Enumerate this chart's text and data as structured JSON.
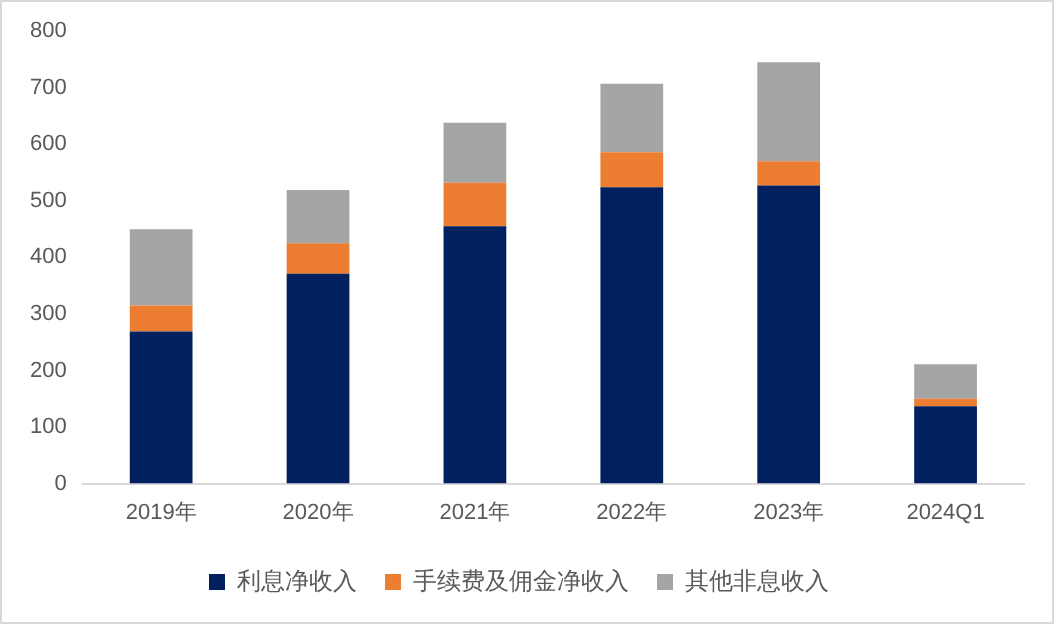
{
  "chart_data": {
    "type": "bar",
    "stacked": true,
    "categories": [
      "2019年",
      "2020年",
      "2021年",
      "2022年",
      "2023年",
      "2024Q1"
    ],
    "series": [
      {
        "name": "利息净收入",
        "color": "#002060",
        "values": [
          269,
          371,
          455,
          524,
          527,
          137
        ]
      },
      {
        "name": "手续费及佣金净收入",
        "color": "#ed7d31",
        "values": [
          46,
          54,
          77,
          62,
          43,
          13
        ]
      },
      {
        "name": "其他非息收入",
        "color": "#a5a5a5",
        "values": [
          135,
          94,
          106,
          121,
          175,
          61
        ]
      }
    ],
    "ylim": [
      0,
      800
    ],
    "yticks": [
      0,
      100,
      200,
      300,
      400,
      500,
      600,
      700,
      800
    ],
    "grid": false,
    "legend": "bottom"
  }
}
